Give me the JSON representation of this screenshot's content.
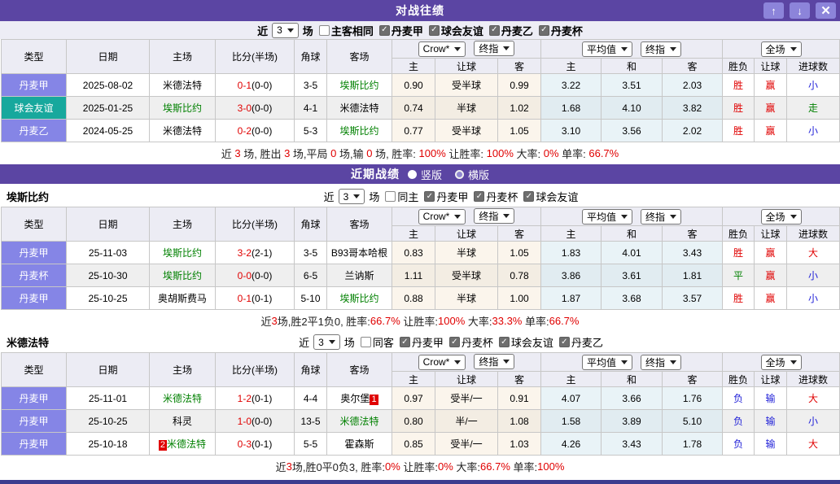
{
  "window": {
    "title": "对战往绩",
    "controls": [
      {
        "name": "move-up",
        "glyph": "↑"
      },
      {
        "name": "move-down",
        "glyph": "↓"
      },
      {
        "name": "close",
        "glyph": "✕"
      }
    ]
  },
  "recent_bar": {
    "title": "近期战绩",
    "radios": [
      {
        "label": "竖版",
        "selected": true
      },
      {
        "label": "横版",
        "selected": false
      }
    ]
  },
  "table_headers": {
    "base": [
      "类型",
      "日期",
      "主场",
      "比分(半场)",
      "角球",
      "客场"
    ],
    "sub": [
      "主",
      "让球",
      "客",
      "主",
      "和",
      "客",
      "胜负",
      "让球",
      "进球数"
    ],
    "select_groups": [
      [
        "Crow*",
        "终指"
      ],
      [
        "平均值",
        "终指"
      ],
      [
        "全场"
      ]
    ]
  },
  "sections": [
    {
      "id": "h2h",
      "title": "",
      "filter": {
        "near": "近",
        "matches": "3",
        "games": "场",
        "extra": {
          "label": "主客相同",
          "checked": false
        },
        "leagues": [
          "丹麦甲",
          "球会友谊",
          "丹麦乙",
          "丹麦杯"
        ]
      },
      "rows": [
        {
          "type": {
            "text": "丹麦甲",
            "color": "purple"
          },
          "date": "2025-08-02",
          "home": {
            "text": "米德法特",
            "green": false
          },
          "score": {
            "full": "0-1",
            "half": "(0-0)"
          },
          "corner": "3-5",
          "away": {
            "text": "埃斯比约",
            "green": true
          },
          "odds": [
            "0.90",
            "受半球",
            "0.99"
          ],
          "avg": [
            "3.22",
            "3.51",
            "2.03"
          ],
          "results": [
            {
              "text": "胜",
              "color": "red"
            },
            {
              "text": "赢",
              "color": "red"
            },
            {
              "text": "小",
              "color": "blue"
            }
          ]
        },
        {
          "type": {
            "text": "球会友谊",
            "color": "teal"
          },
          "date": "2025-01-25",
          "home": {
            "text": "埃斯比约",
            "green": true
          },
          "score": {
            "full": "3-0",
            "half": "(0-0)"
          },
          "corner": "4-1",
          "away": {
            "text": "米德法特",
            "green": false
          },
          "odds": [
            "0.74",
            "半球",
            "1.02"
          ],
          "avg": [
            "1.68",
            "4.10",
            "3.82"
          ],
          "results": [
            {
              "text": "胜",
              "color": "red"
            },
            {
              "text": "赢",
              "color": "red"
            },
            {
              "text": "走",
              "color": "green"
            }
          ]
        },
        {
          "type": {
            "text": "丹麦乙",
            "color": "purple"
          },
          "date": "2024-05-25",
          "home": {
            "text": "米德法特",
            "green": false
          },
          "score": {
            "full": "0-2",
            "half": "(0-0)"
          },
          "corner": "5-3",
          "away": {
            "text": "埃斯比约",
            "green": true
          },
          "odds": [
            "0.77",
            "受半球",
            "1.05"
          ],
          "avg": [
            "3.10",
            "3.56",
            "2.02"
          ],
          "results": [
            {
              "text": "胜",
              "color": "red"
            },
            {
              "text": "赢",
              "color": "red"
            },
            {
              "text": "小",
              "color": "blue"
            }
          ]
        }
      ],
      "summary": [
        {
          "t": "近 "
        },
        {
          "t": "3",
          "r": 1
        },
        {
          "t": " 场, 胜出 "
        },
        {
          "t": "3",
          "r": 1
        },
        {
          "t": " 场,平局 "
        },
        {
          "t": "0",
          "r": 1
        },
        {
          "t": " 场,输 "
        },
        {
          "t": "0",
          "r": 1
        },
        {
          "t": " 场, 胜率: "
        },
        {
          "t": "100%",
          "r": 1
        },
        {
          "t": " 让胜率: "
        },
        {
          "t": "100%",
          "r": 1
        },
        {
          "t": " 大率: "
        },
        {
          "t": "0%",
          "r": 1
        },
        {
          "t": " 单率: "
        },
        {
          "t": "66.7%",
          "r": 1
        }
      ]
    },
    {
      "id": "esbjerg",
      "title": "埃斯比约",
      "filter": {
        "near": "近",
        "matches": "3",
        "games": "场",
        "extra": {
          "label": "同主",
          "checked": false
        },
        "leagues": [
          "丹麦甲",
          "丹麦杯",
          "球会友谊"
        ]
      },
      "rows": [
        {
          "type": {
            "text": "丹麦甲",
            "color": "purple"
          },
          "date": "25-11-03",
          "home": {
            "text": "埃斯比约",
            "green": true
          },
          "score": {
            "full": "3-2",
            "half": "(2-1)"
          },
          "corner": "3-5",
          "away": {
            "text": "B93哥本哈根",
            "green": false
          },
          "odds": [
            "0.83",
            "半球",
            "1.05"
          ],
          "avg": [
            "1.83",
            "4.01",
            "3.43"
          ],
          "results": [
            {
              "text": "胜",
              "color": "red"
            },
            {
              "text": "赢",
              "color": "red"
            },
            {
              "text": "大",
              "color": "red"
            }
          ]
        },
        {
          "type": {
            "text": "丹麦杯",
            "color": "purple"
          },
          "date": "25-10-30",
          "home": {
            "text": "埃斯比约",
            "green": true
          },
          "score": {
            "full": "0-0",
            "half": "(0-0)"
          },
          "corner": "6-5",
          "away": {
            "text": "兰讷斯",
            "green": false
          },
          "odds": [
            "1.11",
            "受半球",
            "0.78"
          ],
          "avg": [
            "3.86",
            "3.61",
            "1.81"
          ],
          "results": [
            {
              "text": "平",
              "color": "green"
            },
            {
              "text": "赢",
              "color": "red"
            },
            {
              "text": "小",
              "color": "blue"
            }
          ]
        },
        {
          "type": {
            "text": "丹麦甲",
            "color": "purple"
          },
          "date": "25-10-25",
          "home": {
            "text": "奥胡斯费马",
            "green": false
          },
          "score": {
            "full": "0-1",
            "half": "(0-1)"
          },
          "corner": "5-10",
          "away": {
            "text": "埃斯比约",
            "green": true
          },
          "odds": [
            "0.88",
            "半球",
            "1.00"
          ],
          "avg": [
            "1.87",
            "3.68",
            "3.57"
          ],
          "results": [
            {
              "text": "胜",
              "color": "red"
            },
            {
              "text": "赢",
              "color": "red"
            },
            {
              "text": "小",
              "color": "blue"
            }
          ]
        }
      ],
      "summary": [
        {
          "t": "近"
        },
        {
          "t": "3",
          "r": 1
        },
        {
          "t": "场,胜2平1负0, 胜率:"
        },
        {
          "t": "66.7%",
          "r": 1
        },
        {
          "t": " 让胜率:"
        },
        {
          "t": "100%",
          "r": 1
        },
        {
          "t": " 大率:"
        },
        {
          "t": "33.3%",
          "r": 1
        },
        {
          "t": " 单率:"
        },
        {
          "t": "66.7%",
          "r": 1
        }
      ]
    },
    {
      "id": "midtjylland",
      "title": "米德法特",
      "filter": {
        "near": "近",
        "matches": "3",
        "games": "场",
        "extra": {
          "label": "同客",
          "checked": false
        },
        "leagues": [
          "丹麦甲",
          "丹麦杯",
          "球会友谊",
          "丹麦乙"
        ]
      },
      "rows": [
        {
          "type": {
            "text": "丹麦甲",
            "color": "purple"
          },
          "date": "25-11-01",
          "home": {
            "text": "米德法特",
            "green": true
          },
          "score": {
            "full": "1-2",
            "half": "(0-1)"
          },
          "corner": "4-4",
          "away": {
            "text": "奥尔堡",
            "green": false,
            "badge": {
              "text": "1",
              "pos": "after"
            }
          },
          "odds": [
            "0.97",
            "受半/一",
            "0.91"
          ],
          "avg": [
            "4.07",
            "3.66",
            "1.76"
          ],
          "results": [
            {
              "text": "负",
              "color": "blue"
            },
            {
              "text": "输",
              "color": "blue"
            },
            {
              "text": "大",
              "color": "red"
            }
          ]
        },
        {
          "type": {
            "text": "丹麦甲",
            "color": "purple"
          },
          "date": "25-10-25",
          "home": {
            "text": "科灵",
            "green": false
          },
          "score": {
            "full": "1-0",
            "half": "(0-0)"
          },
          "corner": "13-5",
          "away": {
            "text": "米德法特",
            "green": true
          },
          "odds": [
            "0.80",
            "半/一",
            "1.08"
          ],
          "avg": [
            "1.58",
            "3.89",
            "5.10"
          ],
          "results": [
            {
              "text": "负",
              "color": "blue"
            },
            {
              "text": "输",
              "color": "blue"
            },
            {
              "text": "小",
              "color": "blue"
            }
          ]
        },
        {
          "type": {
            "text": "丹麦甲",
            "color": "purple"
          },
          "date": "25-10-18",
          "home": {
            "text": "米德法特",
            "green": true,
            "badge": {
              "text": "2",
              "pos": "before"
            }
          },
          "score": {
            "full": "0-3",
            "half": "(0-1)"
          },
          "corner": "5-5",
          "away": {
            "text": "霍森斯",
            "green": false
          },
          "odds": [
            "0.85",
            "受半/一",
            "1.03"
          ],
          "avg": [
            "4.26",
            "3.43",
            "1.78"
          ],
          "results": [
            {
              "text": "负",
              "color": "blue"
            },
            {
              "text": "输",
              "color": "blue"
            },
            {
              "text": "大",
              "color": "red"
            }
          ]
        }
      ],
      "summary": [
        {
          "t": "近"
        },
        {
          "t": "3",
          "r": 1
        },
        {
          "t": "场,胜0平0负3, 胜率:"
        },
        {
          "t": "0%",
          "r": 1
        },
        {
          "t": " 让胜率:"
        },
        {
          "t": "0%",
          "r": 1
        },
        {
          "t": " 大率:"
        },
        {
          "t": "66.7%",
          "r": 1
        },
        {
          "t": " 单率:"
        },
        {
          "t": "100%",
          "r": 1
        }
      ]
    }
  ]
}
